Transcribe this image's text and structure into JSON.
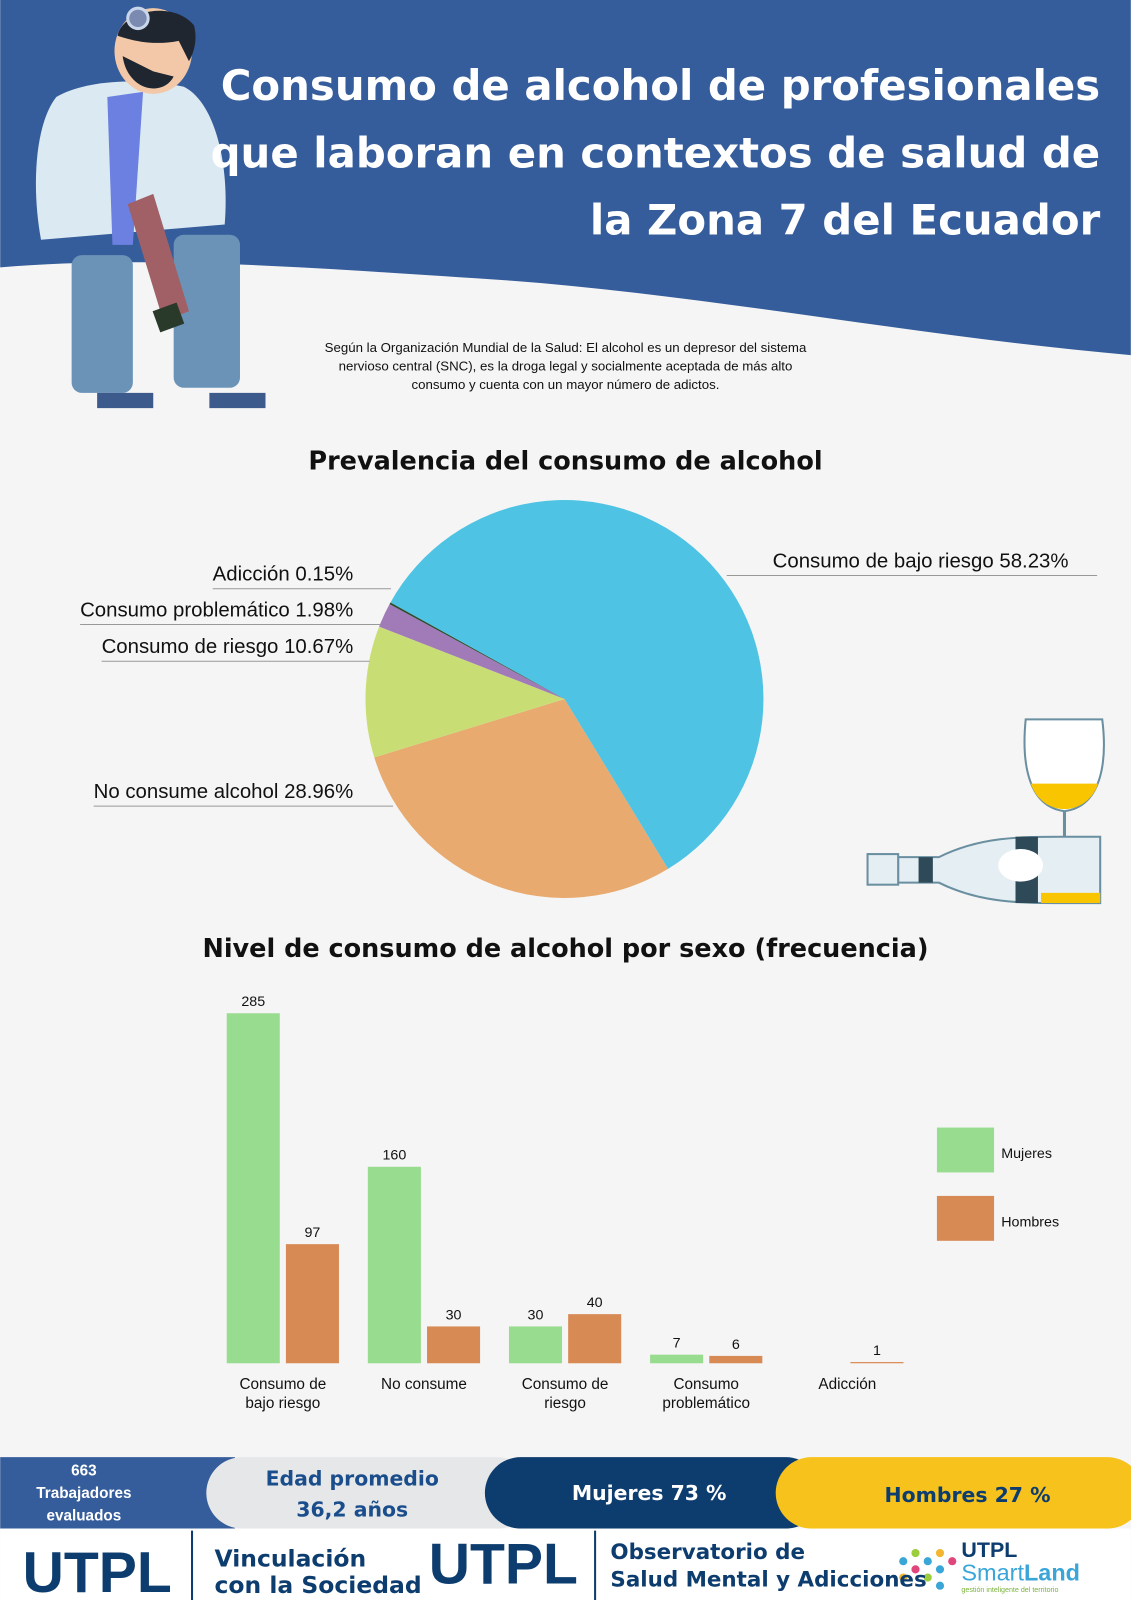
{
  "header": {
    "title": [
      "Consumo de alcohol de profesionales",
      "que laboran en contextos de salud de",
      "la Zona 7 del Ecuador"
    ]
  },
  "intro": [
    "Según la Organización Mundial de la Salud: El alcohol es un depresor del sistema",
    "nervioso central (SNC), es la droga legal y socialmente aceptada de más alto",
    "consumo y cuenta con un mayor número de adictos."
  ],
  "chart_data": [
    {
      "type": "pie",
      "title": "Prevalencia del consumo de alcohol",
      "categories": [
        "Consumo de bajo riesgo",
        "No consume alcohol",
        "Consumo de riesgo",
        "Consumo problemático",
        "Adicción"
      ],
      "values": [
        58.23,
        28.96,
        10.67,
        1.98,
        0.15
      ],
      "value_labels": [
        "58.23%",
        "28.96%",
        "10.67%",
        "1.98%",
        "0.15%"
      ],
      "colors": [
        "#4fc3e4",
        "#e8aa6e",
        "#c8de75",
        "#a07bb8",
        "#2d4a2d"
      ]
    },
    {
      "type": "bar",
      "title": "Nivel de consumo de alcohol por sexo (frecuencia)",
      "categories": [
        "Consumo de bajo riesgo",
        "No consume",
        "Consumo de riesgo",
        "Consumo problemático",
        "Adicción"
      ],
      "series": [
        {
          "name": "Mujeres",
          "color": "#98dc8f",
          "values": [
            285,
            160,
            30,
            7,
            null
          ]
        },
        {
          "name": "Hombres",
          "color": "#d88a55",
          "values": [
            97,
            30,
            40,
            6,
            1
          ]
        }
      ],
      "legend": "right"
    }
  ],
  "footer": {
    "workers": [
      "663",
      "Trabajadores",
      "evaluados"
    ],
    "age": [
      "Edad promedio",
      "36,2 años"
    ],
    "women": "Mujeres 73 %",
    "men": "Hombres 27 %",
    "logos": {
      "utpl1": "UTPL",
      "vinculacion": [
        "Vinculación",
        "con la Sociedad"
      ],
      "utpl2": "UTPL",
      "observatorio": [
        "Observatorio de",
        "Salud Mental y Adicciones"
      ],
      "smart_utpl": "UTPL",
      "smart": "Smart",
      "land": "Land",
      "smart_sub": "gestión inteligente del territorio"
    }
  }
}
